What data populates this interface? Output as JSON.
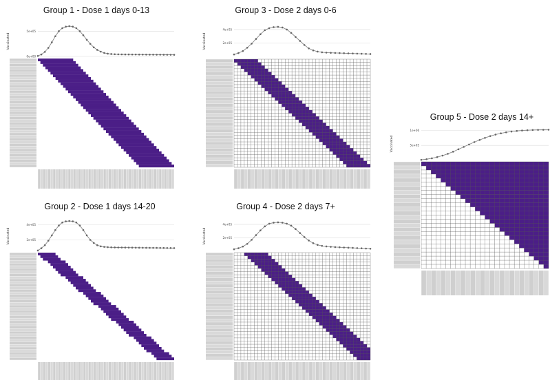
{
  "colors": {
    "cohort_fill": "#4b1e87",
    "grid_line": "#555555",
    "label_box": "#cfcfcf",
    "line": "#888888",
    "point": "#666666",
    "axis_grid": "#dddddd"
  },
  "chart_data": [
    {
      "id": "g1",
      "type": "heatmap",
      "title": "Group 1 - Dose 1 days 0-13",
      "ylabel": "Vaccinated",
      "yticks": [
        "5e+05",
        "0e+00"
      ],
      "ylim": [
        0,
        600000
      ],
      "rows": 41,
      "cols": 54,
      "shape": "band",
      "band_width": 14,
      "band_offset": 0,
      "grid_lines": false,
      "line_values": [
        10000,
        40000,
        90000,
        170000,
        280000,
        400000,
        500000,
        560000,
        590000,
        600000,
        590000,
        560000,
        500000,
        420000,
        330000,
        250000,
        180000,
        130000,
        95000,
        70000,
        55000,
        48000,
        44000,
        42000,
        41000,
        40000,
        39500,
        39000,
        38500,
        38000,
        37500,
        37000,
        36500,
        36000,
        35500,
        35000,
        34500,
        34000,
        33500,
        33000
      ]
    },
    {
      "id": "g2",
      "type": "heatmap",
      "title": "Group 2 - Dose 1 days 14-20",
      "ylabel": "Vaccinated",
      "yticks": [
        "4e+05",
        "2e+05"
      ],
      "ylim": [
        50000,
        450000
      ],
      "rows": 41,
      "cols": 54,
      "shape": "band",
      "band_width": 7,
      "band_offset": 0,
      "grid_lines": false,
      "line_values": [
        60000,
        90000,
        130000,
        190000,
        260000,
        330000,
        390000,
        430000,
        445000,
        450000,
        445000,
        430000,
        390000,
        330000,
        260000,
        200000,
        160000,
        130000,
        115000,
        108000,
        104000,
        102000,
        101000,
        100000,
        99500,
        99000,
        98500,
        98000,
        97500,
        97000,
        96500,
        96000,
        95500,
        95000,
        94500,
        94000,
        93500,
        93000,
        92500,
        92000
      ]
    },
    {
      "id": "g3",
      "type": "heatmap",
      "title": "Group 3 - Dose 2 days 0-6",
      "ylabel": "Vaccinated",
      "yticks": [
        "4e+05",
        "2e+05"
      ],
      "ylim": [
        0,
        450000
      ],
      "rows": 34,
      "cols": 40,
      "shape": "band",
      "band_width": 7,
      "band_offset": 0,
      "grid_lines": true,
      "line_values": [
        30000,
        50000,
        80000,
        130000,
        190000,
        260000,
        330000,
        390000,
        420000,
        435000,
        440000,
        430000,
        400000,
        350000,
        290000,
        230000,
        170000,
        120000,
        90000,
        72000,
        62000,
        57000,
        54000,
        52000,
        50000,
        48000,
        46000,
        44000,
        42000,
        40000,
        38000,
        36000
      ]
    },
    {
      "id": "g4",
      "type": "heatmap",
      "title": "Group 4 - Dose 2 days 7+",
      "ylabel": "Vaccinated",
      "yticks": [
        "4e+05",
        "2e+05"
      ],
      "ylim": [
        0,
        450000
      ],
      "rows": 34,
      "cols": 40,
      "shape": "band",
      "band_width": 7,
      "band_offset": 3,
      "grid_lines": true,
      "line_values": [
        30000,
        45000,
        70000,
        110000,
        170000,
        240000,
        310000,
        370000,
        410000,
        425000,
        430000,
        425000,
        410000,
        380000,
        330000,
        270000,
        210000,
        160000,
        120000,
        95000,
        80000,
        72000,
        66000,
        62000,
        59000,
        56000,
        53000,
        50000,
        47000,
        44000,
        41000,
        38000
      ]
    },
    {
      "id": "g5",
      "type": "heatmap",
      "title": "Group 5 - Dose 2 days 14+",
      "ylabel": "Vaccinated",
      "yticks": [
        "1e+06",
        "5e+05"
      ],
      "ylim": [
        0,
        1100000
      ],
      "rows": 26,
      "cols": 26,
      "shape": "triangle",
      "band_width": 0,
      "band_offset": 0,
      "grid_lines": true,
      "line_values": [
        20000,
        40000,
        70000,
        110000,
        160000,
        220000,
        290000,
        370000,
        450000,
        530000,
        610000,
        680000,
        750000,
        810000,
        860000,
        900000,
        935000,
        960000,
        980000,
        995000,
        1005000,
        1012000,
        1017000,
        1020000,
        1022000
      ]
    }
  ]
}
